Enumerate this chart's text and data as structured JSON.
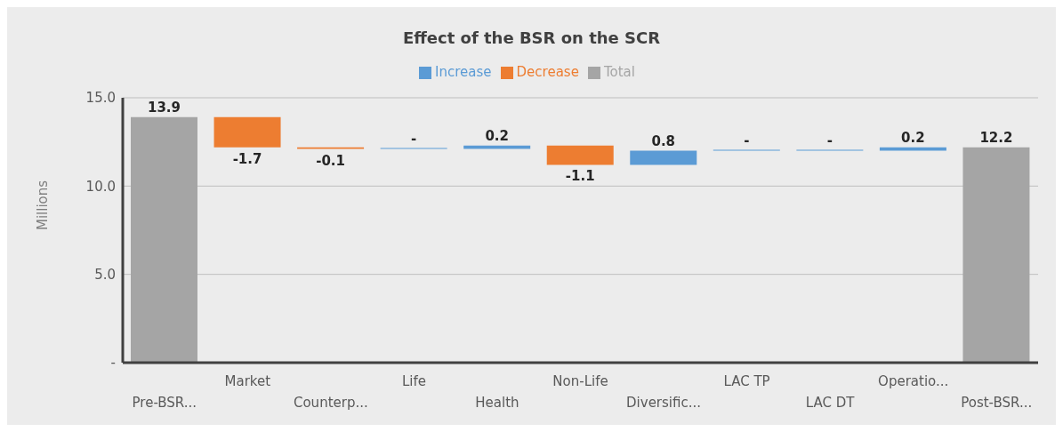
{
  "chart_data": {
    "type": "bar",
    "title": "Effect of the BSR on the SCR",
    "ylabel": "Millions",
    "categories": [
      "Pre-BSR...",
      "Market",
      "Counterp...",
      "Life",
      "Health",
      "Non-Life",
      "Diversific...",
      "LAC TP",
      "LAC DT",
      "Operatio...",
      "Post-BSR..."
    ],
    "series": [
      {
        "name": "Increase",
        "color": "#5b9bd5",
        "values": [
          null,
          null,
          null,
          0,
          0.2,
          null,
          0.8,
          0,
          0,
          0.2,
          null
        ],
        "base": [
          null,
          null,
          null,
          12.1,
          12.1,
          null,
          11.2,
          12.0,
          12.0,
          12.0,
          null
        ],
        "value_labels": [
          null,
          null,
          null,
          "-",
          "0.2",
          null,
          "0.8",
          "-",
          "-",
          "0.2",
          null
        ]
      },
      {
        "name": "Decrease",
        "color": "#ed7d31",
        "values": [
          null,
          -1.7,
          -0.1,
          null,
          null,
          -1.1,
          null,
          null,
          null,
          null,
          null
        ],
        "base": [
          null,
          13.9,
          12.2,
          null,
          null,
          12.3,
          null,
          null,
          null,
          null,
          null
        ],
        "value_labels": [
          null,
          "-1.7",
          "-0.1",
          null,
          null,
          "-1.1",
          null,
          null,
          null,
          null,
          null
        ]
      },
      {
        "name": "Total",
        "color": "#a5a5a5",
        "values": [
          13.9,
          null,
          null,
          null,
          null,
          null,
          null,
          null,
          null,
          null,
          12.2
        ],
        "base": [
          0,
          null,
          null,
          null,
          null,
          null,
          null,
          null,
          null,
          null,
          0
        ],
        "value_labels": [
          "13.9",
          null,
          null,
          null,
          null,
          null,
          null,
          null,
          null,
          null,
          "12.2"
        ]
      }
    ],
    "ylim": [
      0,
      15
    ],
    "yticks": [
      {
        "value": 0,
        "label": "-"
      },
      {
        "value": 5,
        "label": "5.0"
      },
      {
        "value": 10,
        "label": "10.0"
      },
      {
        "value": 15,
        "label": "15.0"
      }
    ],
    "grid": "y",
    "legend": "top"
  }
}
